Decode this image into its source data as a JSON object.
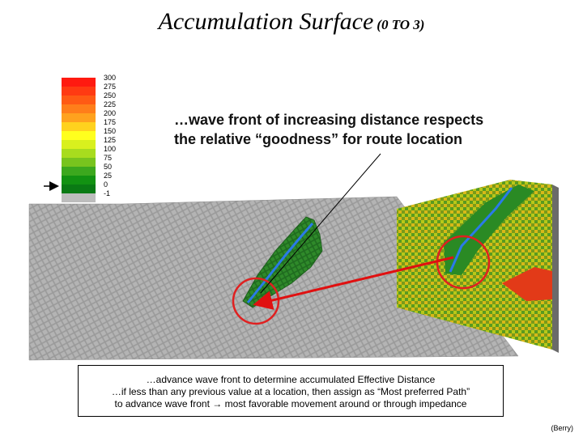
{
  "title": {
    "main": "Accumulation Surface",
    "sub": "(0 TO 3)"
  },
  "legend": {
    "items": [
      {
        "label": "300",
        "color": "#ff1a10"
      },
      {
        "label": "275",
        "color": "#ff3a12"
      },
      {
        "label": "250",
        "color": "#ff5a14"
      },
      {
        "label": "225",
        "color": "#ff7e1a"
      },
      {
        "label": "200",
        "color": "#ffa21e"
      },
      {
        "label": "175",
        "color": "#ffd21e"
      },
      {
        "label": "150",
        "color": "#ffff1e"
      },
      {
        "label": "125",
        "color": "#d8f01e"
      },
      {
        "label": "100",
        "color": "#a8dc1e"
      },
      {
        "label": "75",
        "color": "#78c41e"
      },
      {
        "label": "50",
        "color": "#3ca81e"
      },
      {
        "label": "25",
        "color": "#129212"
      },
      {
        "label": "0",
        "color": "#0a7a14"
      },
      {
        "label": "-1",
        "color": "#bdbdbd"
      }
    ]
  },
  "callout": {
    "line1": "…wave front of increasing distance respects",
    "line2": "the relative “goodness” for route location"
  },
  "caption": {
    "line1": "…advance wave front to determine accumulated Effective Distance",
    "line2": "…if less than any previous value at a location, then assign as “Most preferred Path”",
    "line3_a": "to advance wave front",
    "line3_arrow": "→",
    "line3_b": "most favorable movement around or through impedance"
  },
  "credit": "(Berry)"
}
